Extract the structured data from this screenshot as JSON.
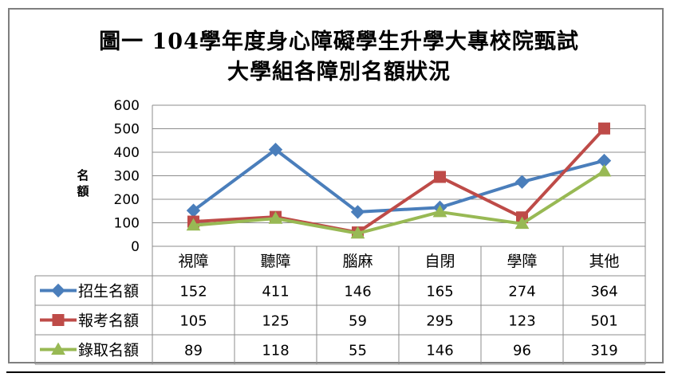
{
  "chart_data": {
    "type": "line",
    "title": "圖一 104學年度身心障礙學生升學大專校院甄試",
    "subtitle": "大學組各障別名額狀況",
    "ylabel": "名額",
    "xlabel": "",
    "ylim": [
      0,
      600
    ],
    "yticks": [
      0,
      100,
      200,
      300,
      400,
      500,
      600
    ],
    "categories": [
      "視障",
      "聽障",
      "腦麻",
      "自閉",
      "學障",
      "其他"
    ],
    "series": [
      {
        "name": "招生名額",
        "values": [
          152,
          411,
          146,
          165,
          274,
          364
        ],
        "color": "#4a7ebb",
        "marker": "diamond"
      },
      {
        "name": "報考名額",
        "values": [
          105,
          125,
          59,
          295,
          123,
          501
        ],
        "color": "#be4b48",
        "marker": "square"
      },
      {
        "name": "錄取名額",
        "values": [
          89,
          118,
          55,
          146,
          96,
          319
        ],
        "color": "#98b954",
        "marker": "triangle"
      }
    ],
    "grid": true,
    "legend": "data-table"
  }
}
